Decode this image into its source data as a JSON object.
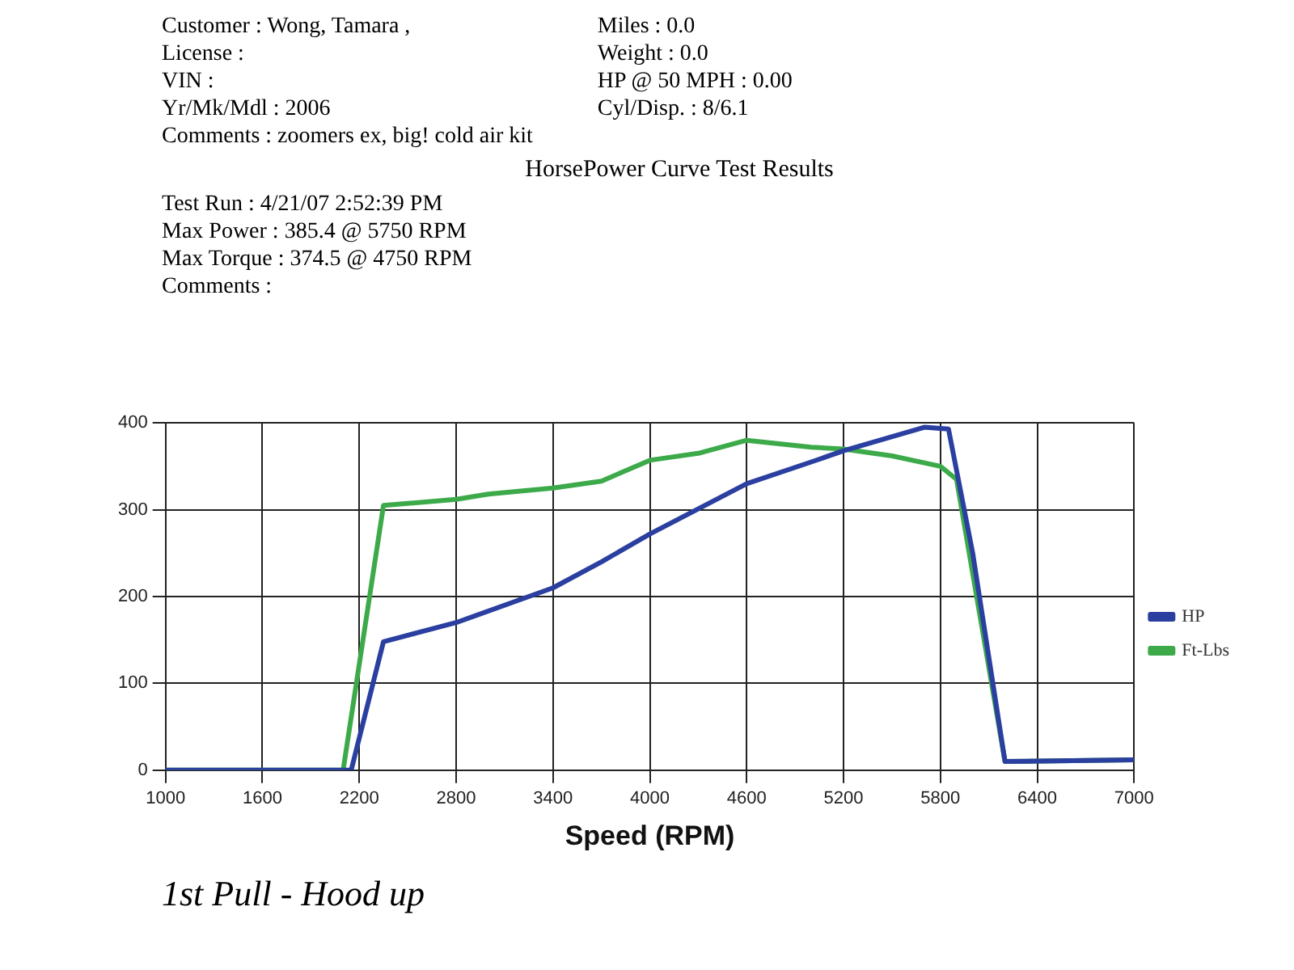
{
  "chart_data": {
    "type": "line",
    "title": "HorsePower Curve Test Results",
    "xlabel": "Speed (RPM)",
    "annotations": [
      "Customer : Wong, Tamara ,",
      "License :",
      "VIN :",
      "Yr/Mk/Mdl : 2006",
      "Comments : zoomers ex, big! cold air kit",
      "Miles : 0.0",
      "Weight : 0.0",
      "HP @ 50 MPH : 0.00",
      "Cyl/Disp. : 8/6.1",
      "Test Run : 4/21/07 2:52:39 PM",
      "Max Power : 385.4 @ 5750 RPM",
      "Max Torque : 374.5 @ 4750 RPM",
      "Comments :",
      "1st Pull - Hood up"
    ],
    "xlim": [
      1000,
      7000
    ],
    "xticks": [
      1000,
      1600,
      2200,
      2800,
      3400,
      4000,
      4600,
      5200,
      5800,
      6400,
      7000
    ],
    "ylim": [
      0,
      400
    ],
    "yticks": [
      0,
      100,
      200,
      300,
      400
    ],
    "grid": true,
    "legend": "right",
    "marker": "none",
    "series": [
      {
        "name": "HP",
        "color": "#2a3fa0",
        "x": [
          1000,
          2150,
          2350,
          2800,
          3400,
          3700,
          4000,
          4600,
          5000,
          5200,
          5700,
          5850,
          6000,
          6100,
          6200,
          7000
        ],
        "values": [
          0,
          0,
          148,
          170,
          210,
          240,
          272,
          330,
          355,
          368,
          395,
          393,
          250,
          130,
          10,
          12
        ]
      },
      {
        "name": "Ft-Lbs",
        "color": "#3daa4a",
        "x": [
          1000,
          2100,
          2350,
          2800,
          3000,
          3400,
          3700,
          4000,
          4300,
          4600,
          5000,
          5200,
          5500,
          5800,
          5900,
          6200,
          7000
        ],
        "values": [
          0,
          0,
          305,
          312,
          318,
          325,
          333,
          357,
          365,
          380,
          372,
          370,
          362,
          350,
          335,
          10,
          12
        ]
      }
    ]
  }
}
